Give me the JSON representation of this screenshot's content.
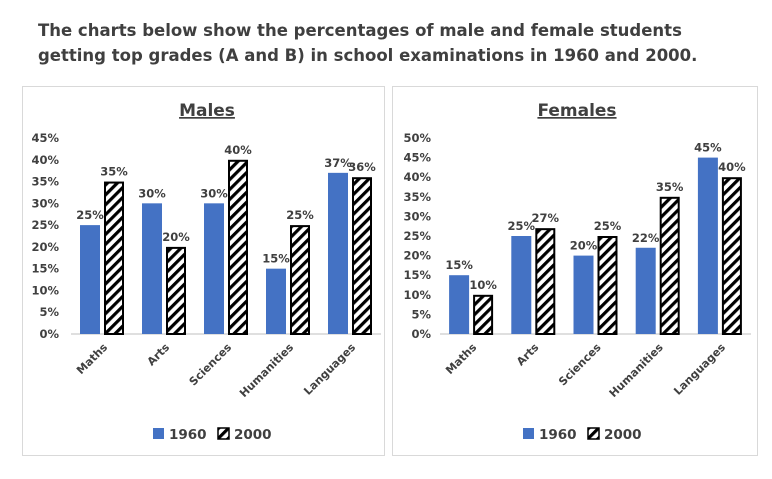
{
  "page": {
    "title": "The charts below show the percentages of male and female students getting top grades (A and B) in school examinations in 1960 and 2000."
  },
  "colors": {
    "series_1960": "#4472c4",
    "series_2000_pattern": "hatched black diagonal stripes on white",
    "axis": "#bfbfbf",
    "text": "#404040"
  },
  "chart_data": [
    {
      "type": "bar",
      "title": "Males",
      "categories": [
        "Maths",
        "Arts",
        "Sciences",
        "Humanities",
        "Languages"
      ],
      "series": [
        {
          "name": "1960",
          "values": [
            25,
            30,
            30,
            15,
            37
          ]
        },
        {
          "name": "2000",
          "values": [
            35,
            20,
            40,
            25,
            36
          ]
        }
      ],
      "data_labels": {
        "1960": [
          "25%",
          "30%",
          "30%",
          "15%",
          "37%"
        ],
        "2000": [
          "35%",
          "20%",
          "40%",
          "25%",
          "36%"
        ]
      },
      "yticks": [
        "0%",
        "5%",
        "10%",
        "15%",
        "20%",
        "25%",
        "30%",
        "35%",
        "40%",
        "45%"
      ],
      "ylim": [
        0,
        45
      ],
      "grid": false,
      "legend": "bottom",
      "xlabel": "",
      "ylabel": ""
    },
    {
      "type": "bar",
      "title": "Females",
      "categories": [
        "Maths",
        "Arts",
        "Sciences",
        "Humanities",
        "Languages"
      ],
      "series": [
        {
          "name": "1960",
          "values": [
            15,
            25,
            20,
            22,
            45
          ]
        },
        {
          "name": "2000",
          "values": [
            10,
            27,
            25,
            35,
            40
          ]
        }
      ],
      "data_labels": {
        "1960": [
          "15%",
          "25%",
          "20%",
          "22%",
          "45%"
        ],
        "2000": [
          "10%",
          "27%",
          "25%",
          "35%",
          "40%"
        ]
      },
      "yticks": [
        "0%",
        "5%",
        "10%",
        "15%",
        "20%",
        "25%",
        "30%",
        "35%",
        "40%",
        "45%",
        "50%"
      ],
      "ylim": [
        0,
        50
      ],
      "grid": false,
      "legend": "bottom",
      "xlabel": "",
      "ylabel": ""
    }
  ]
}
